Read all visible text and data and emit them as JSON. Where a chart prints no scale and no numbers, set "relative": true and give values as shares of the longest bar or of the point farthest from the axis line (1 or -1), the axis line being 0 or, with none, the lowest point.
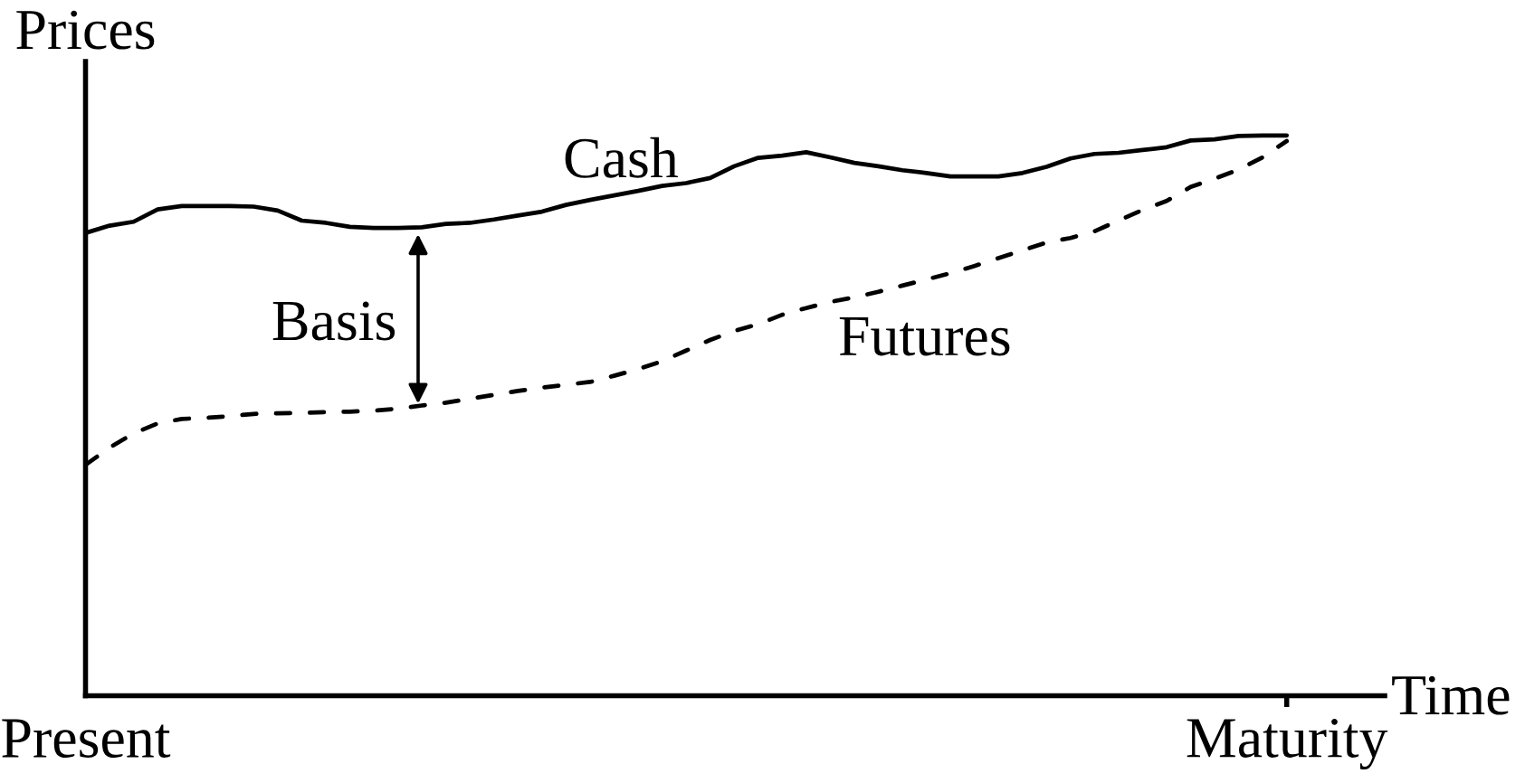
{
  "chart_data": {
    "type": "line",
    "relative": true,
    "xlabel": "Time",
    "ylabel": "Prices",
    "tick_labels": "x",
    "categories": [
      "Present",
      null,
      null,
      null,
      null,
      null,
      null,
      null,
      null,
      null,
      null,
      null,
      null,
      null,
      null,
      null,
      null,
      null,
      null,
      null,
      null,
      null,
      null,
      null,
      null,
      null,
      null,
      null,
      null,
      null,
      null,
      null,
      null,
      null,
      null,
      null,
      null,
      null,
      null,
      null,
      null,
      null,
      null,
      null,
      null,
      null,
      null,
      null,
      null,
      null,
      "Maturity"
    ],
    "annotations": [
      "Basis"
    ],
    "series": [
      {
        "name": "Cash",
        "color": "#000000",
        "line_style": "solid",
        "values": [
          0.826,
          0.839,
          0.846,
          0.868,
          0.874,
          0.874,
          0.874,
          0.873,
          0.866,
          0.848,
          0.844,
          0.837,
          0.835,
          0.835,
          0.836,
          0.842,
          0.844,
          0.85,
          0.857,
          0.864,
          0.876,
          0.885,
          0.893,
          0.901,
          0.91,
          0.915,
          0.924,
          0.945,
          0.96,
          0.964,
          0.97,
          0.961,
          0.951,
          0.945,
          0.938,
          0.933,
          0.927,
          0.927,
          0.927,
          0.933,
          0.944,
          0.959,
          0.967,
          0.969,
          0.974,
          0.979,
          0.991,
          0.993,
          0.999,
          1.0,
          1.0
        ]
      },
      {
        "name": "Futures",
        "color": "#000000",
        "line_style": "dashed",
        "values": [
          0.412,
          0.443,
          0.468,
          0.486,
          0.494,
          0.496,
          0.499,
          0.503,
          0.504,
          0.505,
          0.506,
          0.507,
          0.509,
          0.512,
          0.518,
          0.523,
          0.53,
          0.537,
          0.544,
          0.55,
          0.555,
          0.56,
          0.571,
          0.583,
          0.597,
          0.616,
          0.635,
          0.651,
          0.663,
          0.68,
          0.692,
          0.703,
          0.711,
          0.721,
          0.732,
          0.743,
          0.754,
          0.767,
          0.781,
          0.795,
          0.809,
          0.817,
          0.829,
          0.848,
          0.867,
          0.883,
          0.908,
          0.923,
          0.939,
          0.961,
          0.99
        ]
      }
    ]
  }
}
